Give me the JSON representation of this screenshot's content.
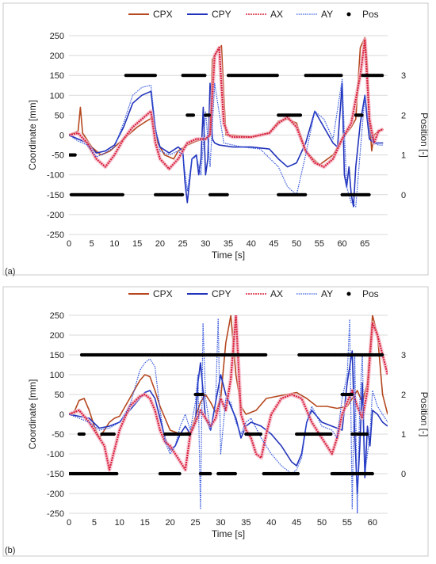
{
  "figure": {
    "panel_labels": [
      "(a)",
      "(b)"
    ]
  },
  "chart_data": [
    {
      "type": "line",
      "panel": "(a)",
      "xlabel": "Time [s]",
      "ylabel": "Coordinate [mm]",
      "y2label": "Position [-]",
      "xlim": [
        0,
        70
      ],
      "ylim": [
        -250,
        250
      ],
      "y2lim": [
        -1,
        4
      ],
      "xticks": [
        0,
        5,
        10,
        15,
        20,
        25,
        30,
        35,
        40,
        45,
        50,
        55,
        60,
        65
      ],
      "yticks": [
        -250,
        -200,
        -150,
        -100,
        -50,
        0,
        50,
        100,
        150,
        200,
        250
      ],
      "y2ticks": [
        0,
        1,
        2,
        3
      ],
      "grid": true,
      "legend": "top",
      "legend_entries": [
        "CPX",
        "CPY",
        "AX",
        "AY",
        "Pos"
      ],
      "colors": {
        "CPX": "#b5481f",
        "CPY": "#2233bb",
        "AX": "#d9203a",
        "AY": "#3355dd",
        "Pos": "#000000"
      },
      "series": [
        {
          "name": "CPX",
          "x": [
            0,
            1,
            2,
            2.5,
            3,
            5,
            7,
            9,
            12,
            15,
            17,
            18.5,
            19.5,
            21,
            23,
            24,
            26,
            28,
            30,
            31,
            31.5,
            32.5,
            33.5,
            34,
            34.5,
            36,
            40,
            44,
            46,
            48,
            50,
            52,
            55,
            58,
            60,
            62,
            63,
            64,
            65,
            65.5,
            66,
            66.5,
            67,
            68,
            69
          ],
          "y": [
            0,
            5,
            10,
            70,
            5,
            -30,
            -50,
            -40,
            -10,
            20,
            35,
            45,
            -20,
            -50,
            -60,
            -40,
            -25,
            -15,
            -10,
            0,
            190,
            210,
            225,
            100,
            0,
            0,
            -5,
            5,
            35,
            40,
            30,
            -40,
            -75,
            -50,
            -10,
            20,
            40,
            220,
            245,
            180,
            40,
            -40,
            0,
            10,
            15
          ]
        },
        {
          "name": "CPY",
          "x": [
            0,
            2,
            4,
            6,
            8,
            10,
            12,
            14,
            16,
            18,
            19,
            20,
            22,
            24,
            25,
            25.5,
            26,
            27,
            28,
            28.5,
            29,
            29.5,
            30,
            30.5,
            31,
            31.5,
            32,
            33,
            36,
            40,
            44,
            46,
            48,
            50,
            52,
            54,
            56,
            58,
            59,
            60,
            60.5,
            61,
            61.5,
            62,
            62.5,
            63,
            64,
            65,
            65.5,
            66,
            67,
            68,
            69
          ],
          "y": [
            0,
            -10,
            -20,
            -45,
            -40,
            -25,
            20,
            80,
            100,
            110,
            10,
            -30,
            -45,
            -30,
            -40,
            -120,
            -170,
            -60,
            -50,
            -100,
            -60,
            70,
            -100,
            -60,
            130,
            -10,
            -20,
            -25,
            -30,
            -30,
            -35,
            -60,
            -80,
            -70,
            -20,
            60,
            20,
            -20,
            -30,
            130,
            -100,
            -130,
            -80,
            -150,
            -180,
            -80,
            30,
            100,
            40,
            -10,
            -20,
            -20,
            -20
          ]
        },
        {
          "name": "AX",
          "x": [
            0,
            2,
            4,
            6,
            8,
            10,
            12,
            14,
            16,
            18,
            19,
            20,
            22,
            24,
            26,
            28,
            30,
            31,
            32,
            33,
            34,
            35,
            36,
            40,
            44,
            46,
            48,
            50,
            52,
            54,
            56,
            58,
            60,
            62,
            64,
            65,
            66,
            67,
            68,
            69
          ],
          "y": [
            0,
            5,
            -20,
            -60,
            -80,
            -50,
            -10,
            20,
            40,
            60,
            -20,
            -60,
            -85,
            -60,
            -20,
            -10,
            -10,
            0,
            200,
            220,
            30,
            0,
            -5,
            -5,
            5,
            30,
            45,
            20,
            -40,
            -70,
            -80,
            -60,
            -10,
            30,
            150,
            240,
            40,
            -20,
            10,
            15
          ]
        },
        {
          "name": "AY",
          "x": [
            0,
            2,
            4,
            6,
            8,
            10,
            12,
            14,
            16,
            18,
            19,
            20,
            22,
            24,
            25,
            26,
            27,
            28,
            29,
            30,
            31,
            32,
            34,
            38,
            42,
            46,
            48,
            50,
            51,
            52,
            54,
            56,
            58,
            60,
            61,
            62,
            63,
            64,
            65,
            66,
            67,
            68,
            69
          ],
          "y": [
            0,
            -15,
            -25,
            -55,
            -45,
            -30,
            30,
            100,
            120,
            125,
            20,
            -40,
            -50,
            -40,
            -50,
            -140,
            -60,
            -55,
            -100,
            60,
            -80,
            130,
            -20,
            -30,
            -35,
            -80,
            -130,
            -150,
            -100,
            -50,
            60,
            40,
            -10,
            140,
            -130,
            -170,
            -180,
            -40,
            100,
            10,
            -20,
            -25,
            -25
          ]
        },
        {
          "name": "Pos",
          "segments": [
            {
              "from": 0,
              "to": 1.5,
              "value": 1
            },
            {
              "from": 0.5,
              "to": 12,
              "value": 0
            },
            {
              "from": 12.5,
              "to": 19,
              "value": 3
            },
            {
              "from": 19,
              "to": 25,
              "value": 0
            },
            {
              "from": 25,
              "to": 30,
              "value": 3
            },
            {
              "from": 26,
              "to": 27.5,
              "value": 2
            },
            {
              "from": 30,
              "to": 31,
              "value": 2
            },
            {
              "from": 31,
              "to": 35,
              "value": 0
            },
            {
              "from": 35,
              "to": 46,
              "value": 3
            },
            {
              "from": 46,
              "to": 51,
              "value": 2
            },
            {
              "from": 46,
              "to": 52,
              "value": 0
            },
            {
              "from": 52,
              "to": 60,
              "value": 3
            },
            {
              "from": 60,
              "to": 66,
              "value": 0
            },
            {
              "from": 63,
              "to": 64.5,
              "value": 2
            },
            {
              "from": 64.5,
              "to": 69,
              "value": 3
            }
          ]
        }
      ]
    },
    {
      "type": "line",
      "panel": "(b)",
      "xlabel": "Time [s]",
      "ylabel": "Coordinate [mm]",
      "y2label": "Position [-]",
      "xlim": [
        0,
        63
      ],
      "ylim": [
        -250,
        250
      ],
      "y2lim": [
        -1,
        4
      ],
      "xticks": [
        0,
        5,
        10,
        15,
        20,
        25,
        30,
        35,
        40,
        45,
        50,
        55,
        60
      ],
      "yticks": [
        -250,
        -200,
        -150,
        -100,
        -50,
        0,
        50,
        100,
        150,
        200,
        250
      ],
      "y2ticks": [
        0,
        1,
        2,
        3
      ],
      "grid": true,
      "legend": "top",
      "legend_entries": [
        "CPX",
        "CPY",
        "AX",
        "AY",
        "Pos"
      ],
      "colors": {
        "CPX": "#b5481f",
        "CPY": "#2233bb",
        "AX": "#d9203a",
        "AY": "#3355dd",
        "Pos": "#000000"
      },
      "series": [
        {
          "name": "CPX",
          "x": [
            0,
            1,
            2,
            3,
            4,
            5,
            6,
            7,
            8,
            9,
            10,
            12,
            14,
            15,
            16,
            17,
            18,
            19,
            20,
            22,
            24,
            26,
            27,
            28,
            29,
            30,
            31,
            32,
            33,
            34,
            35,
            37,
            39,
            41,
            43,
            45,
            47,
            49,
            51,
            53,
            55,
            56,
            57,
            58,
            59,
            60,
            61,
            62,
            63
          ],
          "y": [
            0,
            5,
            35,
            40,
            10,
            -30,
            -60,
            -40,
            -20,
            -10,
            -5,
            40,
            85,
            100,
            95,
            60,
            20,
            -10,
            -40,
            -50,
            -45,
            30,
            50,
            30,
            5,
            40,
            180,
            250,
            100,
            20,
            0,
            10,
            40,
            45,
            50,
            55,
            40,
            20,
            20,
            15,
            20,
            40,
            60,
            30,
            80,
            250,
            200,
            50,
            0
          ],
          "clip": true
        },
        {
          "name": "CPY",
          "x": [
            0,
            2,
            4,
            6,
            8,
            10,
            12,
            14,
            15,
            16,
            17,
            18,
            19,
            20,
            21,
            22,
            23,
            24,
            25,
            25.5,
            26,
            27,
            28,
            29,
            30,
            31,
            32,
            33,
            34,
            35,
            36,
            38,
            40,
            42,
            44,
            45,
            46,
            47,
            48,
            50,
            52,
            54,
            55,
            56,
            56.5,
            57,
            57.5,
            58,
            58.5,
            59,
            59.5,
            60,
            61,
            62,
            63
          ],
          "y": [
            0,
            -5,
            -10,
            -35,
            -30,
            -20,
            10,
            40,
            55,
            60,
            40,
            -10,
            -60,
            -90,
            -80,
            -50,
            -30,
            -50,
            -20,
            80,
            130,
            -10,
            -40,
            30,
            100,
            50,
            20,
            -10,
            -60,
            -30,
            -20,
            -30,
            -50,
            -80,
            -120,
            -130,
            -100,
            -20,
            10,
            -20,
            -30,
            -40,
            80,
            160,
            -50,
            -200,
            -80,
            80,
            -160,
            -30,
            -80,
            10,
            0,
            -20,
            -30
          ]
        },
        {
          "name": "AX",
          "x": [
            0,
            2,
            4,
            6,
            7,
            8,
            10,
            12,
            14,
            15,
            16,
            17,
            18,
            19,
            20,
            21,
            22,
            23,
            24,
            25,
            26,
            27,
            28,
            29,
            30,
            31,
            32,
            33,
            34,
            35,
            36,
            37,
            38,
            39,
            40,
            42,
            44,
            46,
            48,
            50,
            51,
            52,
            53,
            54,
            55,
            56,
            57,
            58,
            59,
            60,
            61,
            62,
            63
          ],
          "y": [
            0,
            10,
            -20,
            -60,
            -80,
            -140,
            -40,
            20,
            45,
            50,
            40,
            10,
            -40,
            -70,
            -80,
            -100,
            -120,
            -140,
            -50,
            -20,
            10,
            -10,
            -30,
            -10,
            40,
            10,
            90,
            250,
            0,
            -40,
            -60,
            -100,
            -110,
            -50,
            0,
            40,
            50,
            40,
            -20,
            -60,
            -80,
            -100,
            -60,
            0,
            30,
            60,
            20,
            -10,
            60,
            230,
            200,
            150,
            100
          ],
          "clip": true
        },
        {
          "name": "AY",
          "x": [
            0,
            2,
            4,
            6,
            8,
            10,
            12,
            14,
            15,
            16,
            17,
            18,
            19,
            20,
            21,
            22,
            23,
            24,
            25,
            25.5,
            26,
            26.5,
            27,
            28,
            29,
            29.5,
            30,
            31,
            32,
            33,
            34,
            35,
            36,
            38,
            40,
            42,
            44,
            45,
            46,
            47,
            48,
            50,
            52,
            53,
            54,
            55,
            55.5,
            56,
            56.5,
            57,
            57.5,
            58,
            58.5,
            59,
            59.5,
            60,
            61,
            62,
            63
          ],
          "y": [
            0,
            -10,
            -20,
            -40,
            -35,
            -20,
            20,
            110,
            130,
            140,
            120,
            10,
            -70,
            -100,
            -80,
            -30,
            0,
            -40,
            30,
            100,
            -240,
            230,
            40,
            -40,
            30,
            240,
            -100,
            40,
            30,
            -20,
            -50,
            -20,
            -10,
            -60,
            -100,
            -130,
            -150,
            -140,
            -110,
            -20,
            20,
            -30,
            -40,
            -60,
            40,
            100,
            240,
            -240,
            150,
            -250,
            30,
            150,
            -150,
            -100,
            -50,
            60,
            20,
            0,
            -20
          ]
        },
        {
          "name": "Pos",
          "segments": [
            {
              "from": 2,
              "to": 3,
              "value": 1
            },
            {
              "from": 2.5,
              "to": 28,
              "value": 3
            },
            {
              "from": 0,
              "to": 9.5,
              "value": 0
            },
            {
              "from": 6.5,
              "to": 9,
              "value": 1
            },
            {
              "from": 18,
              "to": 22,
              "value": 0
            },
            {
              "from": 19,
              "to": 24,
              "value": 1
            },
            {
              "from": 25,
              "to": 26.5,
              "value": 2
            },
            {
              "from": 26,
              "to": 28,
              "value": 0
            },
            {
              "from": 29.5,
              "to": 33,
              "value": 0
            },
            {
              "from": 28,
              "to": 39,
              "value": 3
            },
            {
              "from": 35,
              "to": 38,
              "value": 1
            },
            {
              "from": 38.5,
              "to": 45.5,
              "value": 0
            },
            {
              "from": 45,
              "to": 52,
              "value": 1
            },
            {
              "from": 45.5,
              "to": 60,
              "value": 3
            },
            {
              "from": 52,
              "to": 60,
              "value": 0
            },
            {
              "from": 54,
              "to": 56,
              "value": 2
            },
            {
              "from": 56,
              "to": 59,
              "value": 1
            },
            {
              "from": 60,
              "to": 62,
              "value": 3
            }
          ]
        }
      ]
    }
  ]
}
